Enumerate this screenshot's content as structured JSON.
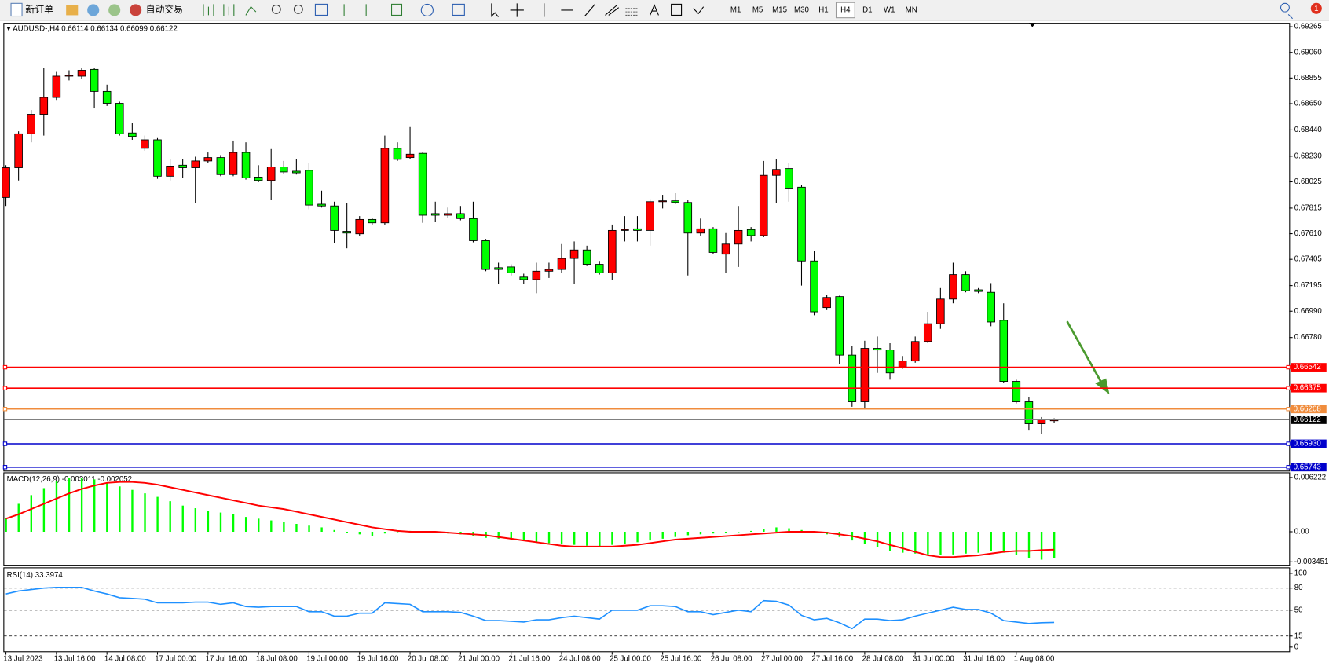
{
  "toolbar": {
    "new_order": "新订单",
    "auto_trading": "自动交易",
    "timeframes": [
      "M1",
      "M5",
      "M15",
      "M30",
      "H1",
      "H4",
      "D1",
      "W1",
      "MN"
    ],
    "active_timeframe": "H4",
    "notifications": 1
  },
  "chart_data": [
    {
      "type": "candlestick",
      "symbol": "AUDUSD-,H4",
      "up_color": "#ff0000",
      "down_color": "#00ff00",
      "categories": [
        "13 Jul 2023",
        null,
        null,
        null,
        "13 Jul 16:00",
        null,
        null,
        null,
        "14 Jul 08:00",
        null,
        null,
        null,
        "17 Jul 00:00",
        null,
        null,
        null,
        "17 Jul 16:00",
        null,
        null,
        null,
        "18 Jul 08:00",
        null,
        null,
        null,
        "19 Jul 00:00",
        null,
        null,
        null,
        "19 Jul 16:00",
        null,
        null,
        null,
        "20 Jul 08:00",
        null,
        null,
        null,
        "21 Jul 00:00",
        null,
        null,
        null,
        "21 Jul 16:00",
        null,
        null,
        null,
        "24 Jul 08:00",
        null,
        null,
        null,
        "25 Jul 00:00",
        null,
        null,
        null,
        "25 Jul 16:00",
        null,
        null,
        null,
        "26 Jul 08:00",
        null,
        null,
        null,
        "27 Jul 00:00",
        null,
        null,
        null,
        "27 Jul 16:00",
        null,
        null,
        null,
        "28 Jul 08:00",
        null,
        null,
        null,
        "31 Jul 00:00",
        null,
        null,
        null,
        "31 Jul 16:00",
        null,
        null,
        null,
        "1 Aug 08:00",
        null,
        null,
        null
      ],
      "open": [
        0.679,
        0.68138,
        0.68409,
        0.68565,
        0.687,
        0.6887,
        0.6887,
        0.68924,
        0.68748,
        0.68653,
        0.68416,
        0.68293,
        0.68361,
        0.6807,
        0.68158,
        0.68138,
        0.68192,
        0.68219,
        0.68083,
        0.6826,
        0.68063,
        0.68036,
        0.68144,
        0.6811,
        0.68117,
        0.67846,
        0.67832,
        0.67629,
        0.67609,
        0.67724,
        0.67697,
        0.68293,
        0.68219,
        0.68253,
        0.67771,
        0.67758,
        0.67771,
        0.67731,
        0.67554,
        0.67338,
        0.67344,
        0.67263,
        0.67243,
        0.6731,
        0.67324,
        0.67412,
        0.6748,
        0.67365,
        0.67297,
        0.67636,
        0.67649,
        0.67636,
        0.67866,
        0.67873,
        0.6786,
        0.67615,
        0.67649,
        0.67446,
        0.67527,
        0.67643,
        0.67595,
        0.68077,
        0.68131,
        0.67982,
        0.67392,
        0.67019,
        0.67107,
        0.66639,
        0.66266,
        0.66693,
        0.6668,
        0.66544,
        0.66592,
        0.66748,
        0.6689,
        0.67087,
        0.67283,
        0.67161,
        0.67141,
        0.66917,
        0.66429,
        0.66266,
        0.6609,
        0.66114
      ],
      "high": [
        0.68158,
        0.68429,
        0.68599,
        0.68938,
        0.68904,
        0.68917,
        0.68938,
        0.68938,
        0.68802,
        0.68666,
        0.68497,
        0.68395,
        0.68375,
        0.68205,
        0.68205,
        0.68226,
        0.6826,
        0.68239,
        0.68355,
        0.68341,
        0.68158,
        0.68287,
        0.68192,
        0.68205,
        0.68178,
        0.67954,
        0.67866,
        0.67853,
        0.67751,
        0.67738,
        0.68395,
        0.68341,
        0.68463,
        0.6826,
        0.67866,
        0.67819,
        0.67832,
        0.67866,
        0.67568,
        0.67378,
        0.67365,
        0.6729,
        0.67378,
        0.67378,
        0.67527,
        0.67548,
        0.67514,
        0.67392,
        0.67683,
        0.67751,
        0.67751,
        0.67887,
        0.67921,
        0.67934,
        0.6788,
        0.67731,
        0.67663,
        0.67615,
        0.67832,
        0.67663,
        0.68192,
        0.68205,
        0.68178,
        0.68002,
        0.67473,
        0.67121,
        0.67114,
        0.66714,
        0.66754,
        0.66788,
        0.66734,
        0.66632,
        0.66788,
        0.66985,
        0.67175,
        0.67378,
        0.6731,
        0.67175,
        0.67215,
        0.67053,
        0.66443,
        0.66307,
        0.66144,
        0.66134
      ],
      "low": [
        0.67832,
        0.68036,
        0.68341,
        0.68395,
        0.6868,
        0.68836,
        0.68849,
        0.68612,
        0.68632,
        0.68395,
        0.68361,
        0.68273,
        0.68049,
        0.68036,
        0.68056,
        0.67853,
        0.68178,
        0.6807,
        0.6807,
        0.68043,
        0.68022,
        0.6788,
        0.6809,
        0.68083,
        0.67805,
        0.67819,
        0.67534,
        0.67493,
        0.67595,
        0.67683,
        0.67683,
        0.68192,
        0.68205,
        0.67697,
        0.67704,
        0.67738,
        0.67717,
        0.67541,
        0.6731,
        0.67209,
        0.67276,
        0.67209,
        0.67134,
        0.67256,
        0.67297,
        0.67209,
        0.67351,
        0.67283,
        0.67243,
        0.67548,
        0.67548,
        0.67514,
        0.67812,
        0.67846,
        0.67276,
        0.67595,
        0.67446,
        0.67297,
        0.67344,
        0.67548,
        0.67582,
        0.67853,
        0.67866,
        0.67195,
        0.66958,
        0.66999,
        0.66565,
        0.66226,
        0.66212,
        0.66497,
        0.66443,
        0.6653,
        0.66578,
        0.66734,
        0.66849,
        0.67053,
        0.67141,
        0.67134,
        0.6687,
        0.66415,
        0.66253,
        0.66036,
        0.66009,
        0.66099
      ],
      "close": [
        0.68138,
        0.68409,
        0.68565,
        0.687,
        0.6887,
        0.68877,
        0.68917,
        0.68748,
        0.68653,
        0.68409,
        0.68388,
        0.68361,
        0.6807,
        0.68151,
        0.68138,
        0.68192,
        0.68219,
        0.68083,
        0.6826,
        0.68056,
        0.68036,
        0.68144,
        0.68104,
        0.68097,
        0.67839,
        0.67832,
        0.67636,
        0.67615,
        0.67724,
        0.67697,
        0.68293,
        0.68205,
        0.68246,
        0.67758,
        0.67758,
        0.67771,
        0.67731,
        0.67554,
        0.67324,
        0.67324,
        0.67297,
        0.67243,
        0.6731,
        0.67324,
        0.67412,
        0.6748,
        0.67365,
        0.67297,
        0.67636,
        0.67643,
        0.67636,
        0.67866,
        0.67873,
        0.6786,
        0.67615,
        0.67649,
        0.6746,
        0.67527,
        0.67636,
        0.67595,
        0.68077,
        0.68124,
        0.67975,
        0.67392,
        0.66985,
        0.671,
        0.66639,
        0.66266,
        0.66693,
        0.6668,
        0.66497,
        0.66592,
        0.66748,
        0.6689,
        0.67087,
        0.67283,
        0.67154,
        0.67148,
        0.66904,
        0.66429,
        0.66266,
        0.6609,
        0.66124,
        0.66122
      ],
      "ylim": [
        0.65708,
        0.69296
      ],
      "yticks": [
        0.69265,
        {
          "value": 0.6906,
          "label": "0.69060"
        },
        0.68855,
        {
          "value": 0.6865,
          "label": "0.68650"
        },
        {
          "value": 0.6844,
          "label": "0.68440"
        },
        {
          "value": 0.6823,
          "label": "0.68230"
        },
        0.68025,
        0.67815,
        {
          "value": 0.6761,
          "label": "0.67610"
        },
        0.67405,
        0.67195,
        {
          "value": 0.6699,
          "label": "0.66990"
        },
        {
          "value": 0.6678,
          "label": "0.66780"
        }
      ],
      "levels": [
        {
          "value": 0.66542,
          "color": "#ff0000"
        },
        {
          "value": 0.66375,
          "color": "#ff0000"
        },
        {
          "value": 0.66208,
          "color": "#f08c3c"
        },
        {
          "value": 0.6593,
          "label": "0.65930",
          "color": "#0000cc"
        },
        {
          "value": 0.65743,
          "color": "#0000cc"
        }
      ]
    },
    {
      "type": "macd",
      "title": "MACD(12,26,9)",
      "histogram": {
        "color": "#00ff00",
        "values": [
          0.0016,
          0.0032,
          0.0042,
          0.005,
          0.0058,
          0.0062,
          0.0062,
          0.006,
          0.0056,
          0.0052,
          0.0048,
          0.0044,
          0.004,
          0.0035,
          0.003,
          0.0027,
          0.0024,
          0.0022,
          0.002,
          0.0017,
          0.0015,
          0.0013,
          0.0011,
          0.0009,
          0.0007,
          0.0005,
          0.0002,
          -0.0001,
          -0.0003,
          -0.0005,
          -0.0002,
          0,
          0.0001,
          0,
          -0.0001,
          -0.0002,
          -0.0003,
          -0.0005,
          -0.0007,
          -0.0008,
          -0.0009,
          -0.001,
          -0.0012,
          -0.0013,
          -0.0014,
          -0.0015,
          -0.0016,
          -0.0017,
          -0.0015,
          -0.0014,
          -0.0012,
          -0.001,
          -0.0008,
          -0.0006,
          -0.0004,
          -0.0003,
          -0.0002,
          -0.0001,
          0,
          0.0001,
          0.0003,
          0.0005,
          0.0004,
          0.0002,
          0,
          -0.0003,
          -0.0006,
          -0.001,
          -0.0014,
          -0.0018,
          -0.0022,
          -0.0024,
          -0.0025,
          -0.0026,
          -0.0027,
          -0.0026,
          -0.0025,
          -0.0024,
          -0.0022,
          -0.0024,
          -0.0027,
          -0.003,
          -0.0032,
          -0.003011
        ]
      },
      "signal": {
        "color": "#ff0000",
        "values": [
          0.0015,
          0.002,
          0.0026,
          0.0032,
          0.0038,
          0.0044,
          0.0049,
          0.0053,
          0.0056,
          0.0057,
          0.0057,
          0.0056,
          0.0054,
          0.0051,
          0.0048,
          0.0045,
          0.0042,
          0.0039,
          0.0036,
          0.0033,
          0.003,
          0.0028,
          0.0026,
          0.0023,
          0.002,
          0.0017,
          0.0014,
          0.0011,
          0.0008,
          0.0005,
          0.0003,
          0.0001,
          0,
          0,
          0,
          -0.0001,
          -0.0002,
          -0.0003,
          -0.0004,
          -0.0006,
          -0.0008,
          -0.001,
          -0.0012,
          -0.0014,
          -0.0016,
          -0.0017,
          -0.0017,
          -0.0017,
          -0.0017,
          -0.0016,
          -0.0015,
          -0.0013,
          -0.0011,
          -0.0009,
          -0.0008,
          -0.0007,
          -0.0006,
          -0.0005,
          -0.0004,
          -0.0003,
          -0.0002,
          -0.0001,
          0,
          0,
          0,
          -0.0001,
          -0.0003,
          -0.0005,
          -0.0008,
          -0.0011,
          -0.0015,
          -0.0019,
          -0.0023,
          -0.0027,
          -0.0029,
          -0.0029,
          -0.0028,
          -0.0027,
          -0.0025,
          -0.0023,
          -0.0022,
          -0.0022,
          -0.0021,
          -0.002052
        ]
      },
      "ylim": [
        -0.00389,
        0.00671
      ],
      "yticks": [
        0.006222,
        {
          "value": 0,
          "label": "0.00"
        },
        -0.003451
      ]
    },
    {
      "type": "rsi",
      "title": "RSI(14)",
      "color": "#1e90ff",
      "values": [
        72,
        76,
        78,
        80,
        81,
        81,
        81,
        76,
        72,
        67,
        66,
        65,
        60,
        60,
        60,
        61,
        61,
        58,
        60,
        55,
        54,
        55,
        55,
        55,
        48,
        48,
        42,
        42,
        46,
        46,
        60,
        59,
        58,
        48,
        48,
        48,
        47,
        42,
        36,
        36,
        35,
        34,
        37,
        37,
        40,
        42,
        40,
        38,
        50,
        50,
        50,
        56,
        56,
        55,
        48,
        48,
        44,
        47,
        50,
        48,
        63,
        62,
        57,
        43,
        37,
        39,
        33,
        25,
        38,
        38,
        36,
        37,
        42,
        46,
        50,
        54,
        51,
        51,
        46,
        36,
        34,
        32,
        33,
        33.3974
      ],
      "ylim": [
        -6.9,
        106.9
      ],
      "yticks": [
        100,
        80,
        50,
        15,
        0
      ],
      "levels": [
        80,
        50,
        15
      ]
    }
  ]
}
